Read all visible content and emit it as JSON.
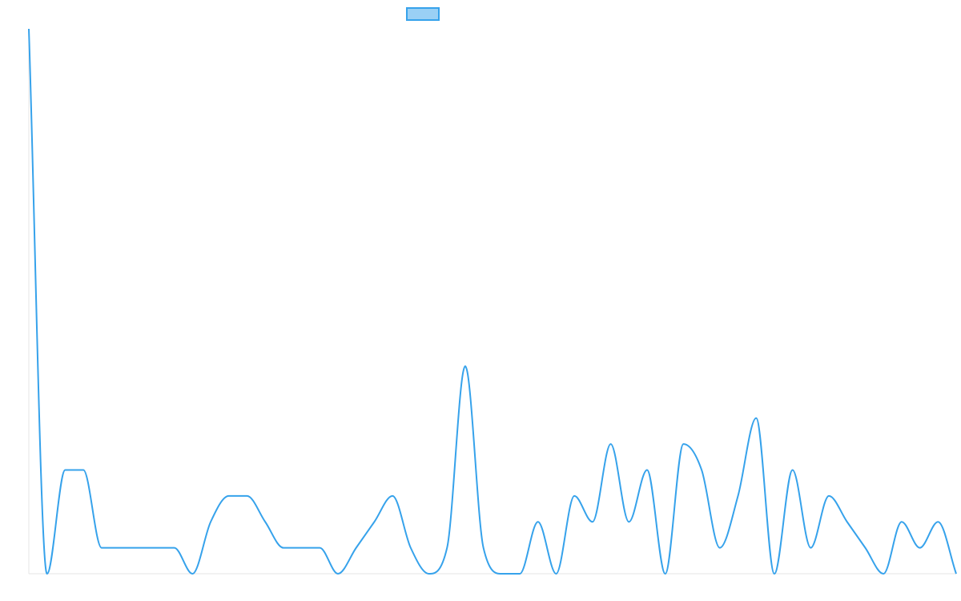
{
  "chart_data": {
    "type": "line",
    "title": "",
    "xlabel": "",
    "ylabel": "",
    "x": [
      0,
      1,
      2,
      3,
      4,
      5,
      6,
      7,
      8,
      9,
      10,
      11,
      12,
      13,
      14,
      15,
      16,
      17,
      18,
      19,
      20,
      21,
      22,
      23,
      24,
      25,
      26,
      27,
      28,
      29,
      30,
      31,
      32,
      33,
      34,
      35,
      36,
      37,
      38,
      39,
      40,
      41,
      42,
      43,
      44,
      45,
      46,
      47,
      48,
      49,
      50,
      51
    ],
    "ylim": [
      0,
      21
    ],
    "grid": false,
    "legend": "top-center",
    "series": [
      {
        "name": "",
        "color": "#36a2eb",
        "fill_color": "#9ad0f5",
        "values": [
          21,
          0,
          4,
          4,
          1,
          1,
          1,
          1,
          1,
          0,
          2,
          3,
          3,
          2,
          1,
          1,
          1,
          0,
          1,
          2,
          3,
          1,
          0,
          1,
          8,
          1,
          0,
          0,
          2,
          0,
          3,
          2,
          5,
          2,
          4,
          0,
          5,
          4,
          1,
          3,
          6,
          0,
          4,
          1,
          3,
          2,
          1,
          0,
          2,
          1,
          2,
          0
        ]
      }
    ]
  }
}
